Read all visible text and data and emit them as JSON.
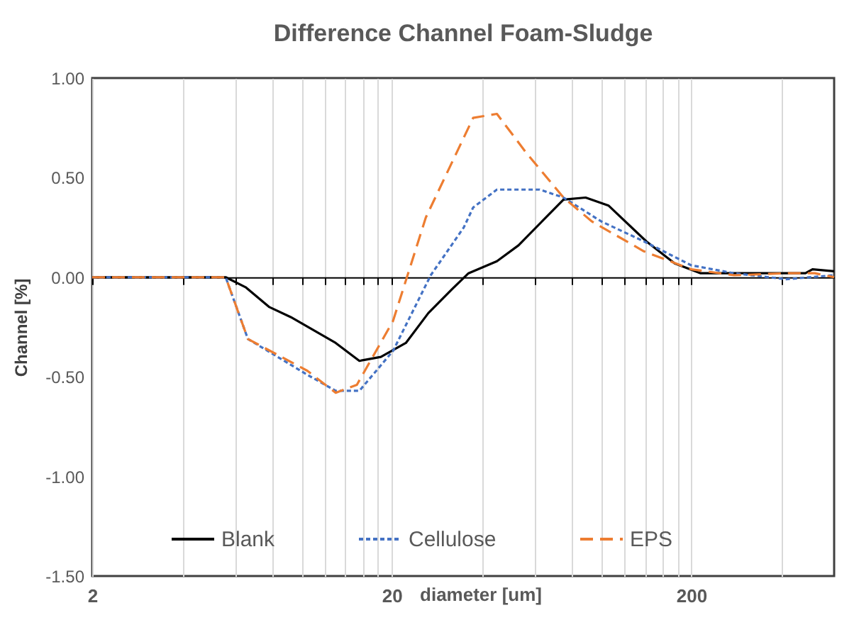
{
  "chart_data": {
    "type": "line",
    "title": "Difference Channel Foam-Sludge",
    "xlabel": "diameter [um]",
    "ylabel": "Channel [%]",
    "series": [
      {
        "name": "Blank",
        "color": "#000000",
        "line_style": "solid",
        "x": [
          2,
          5.58,
          6.5,
          7.81,
          9.2,
          13.0,
          15.6,
          18.4,
          22.3,
          26.5,
          31.8,
          36.1,
          44.9,
          53.0,
          74.9,
          88.8,
          105.8,
          141.6,
          176,
          215,
          334,
          481,
          508,
          600
        ],
        "values": [
          0,
          0,
          -0.05,
          -0.15,
          -0.2,
          -0.33,
          -0.42,
          -0.4,
          -0.33,
          -0.18,
          -0.06,
          0.02,
          0.08,
          0.16,
          0.39,
          0.4,
          0.36,
          0.18,
          0.07,
          0.02,
          0.02,
          0.02,
          0.04,
          0.03
        ]
      },
      {
        "name": "Cellulose",
        "color": "#4472c4",
        "line_style": "dotted",
        "x": [
          2,
          5.58,
          6.62,
          10.46,
          13.0,
          15.6,
          20.2,
          27.0,
          34.8,
          37.4,
          44.9,
          62.4,
          74.9,
          100.2,
          139,
          200,
          278,
          415,
          600
        ],
        "values": [
          0,
          0,
          -0.31,
          -0.49,
          -0.57,
          -0.57,
          -0.37,
          0.01,
          0.25,
          0.35,
          0.44,
          0.44,
          0.4,
          0.28,
          0.18,
          0.06,
          0.02,
          -0.01,
          0.01
        ]
      },
      {
        "name": "EPS",
        "color": "#ed7d31",
        "line_style": "dashed",
        "x": [
          2,
          5.58,
          6.62,
          10.46,
          13.0,
          15.3,
          20.2,
          26.0,
          37.4,
          44.9,
          55.9,
          74.9,
          93.2,
          139,
          200,
          278,
          415,
          517,
          600
        ],
        "values": [
          0,
          0,
          -0.31,
          -0.47,
          -0.58,
          -0.54,
          -0.22,
          0.3,
          0.8,
          0.82,
          0.63,
          0.4,
          0.28,
          0.13,
          0.04,
          0.01,
          0.02,
          0.02,
          0
        ]
      }
    ],
    "xlim": [
      2,
      600
    ],
    "xticks": [
      2,
      {
        "value": 4,
        "label": null
      },
      {
        "value": 6,
        "label": null
      },
      {
        "value": 8,
        "label": null
      },
      {
        "value": 10,
        "label": null
      },
      {
        "value": 12,
        "label": null
      },
      {
        "value": 14,
        "label": null
      },
      {
        "value": 16,
        "label": null
      },
      {
        "value": 18,
        "label": null
      },
      20,
      {
        "value": 40,
        "label": null
      },
      {
        "value": 60,
        "label": null
      },
      {
        "value": 80,
        "label": null
      },
      {
        "value": 100,
        "label": null
      },
      {
        "value": 120,
        "label": null
      },
      {
        "value": 140,
        "label": null
      },
      {
        "value": 160,
        "label": null
      },
      {
        "value": 180,
        "label": null
      },
      200,
      {
        "value": 400,
        "label": null
      }
    ],
    "ylim": [
      -1.5,
      1.0
    ],
    "yticks": [
      {
        "value": -1.5,
        "label": "-1.50"
      },
      {
        "value": -1.0,
        "label": "-1.00"
      },
      {
        "value": -0.5,
        "label": "-0.50"
      },
      {
        "value": 0,
        "label": "0.00"
      },
      {
        "value": 0.5,
        "label": "0.50"
      },
      {
        "value": 1.0,
        "label": "1.00"
      }
    ],
    "log": "x",
    "grid": "x",
    "legend": "bottom"
  }
}
